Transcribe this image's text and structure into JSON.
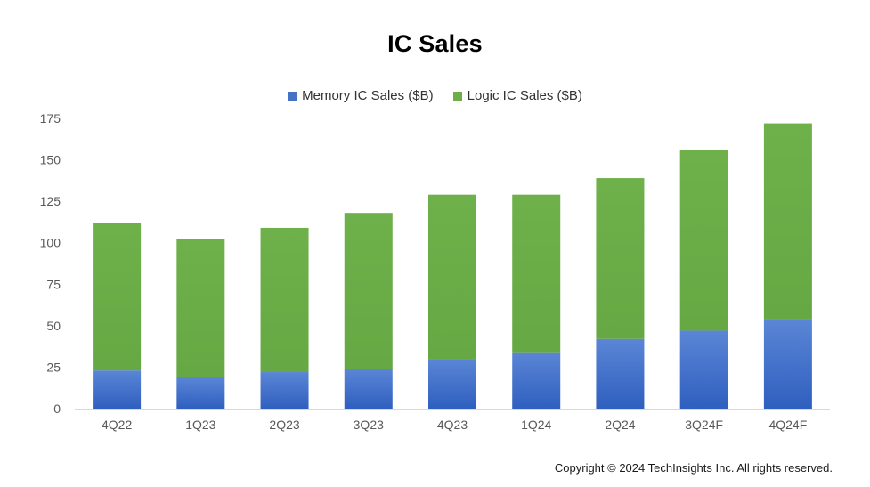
{
  "chart_data": {
    "type": "bar",
    "stacked": true,
    "title": "IC Sales",
    "xlabel": "",
    "ylabel": "",
    "categories": [
      "4Q22",
      "1Q23",
      "2Q23",
      "3Q23",
      "4Q23",
      "1Q24",
      "2Q24",
      "3Q24F",
      "4Q24F"
    ],
    "series": [
      {
        "name": "Memory IC Sales ($B)",
        "color": "#4472c4",
        "values": [
          23,
          19,
          22,
          24,
          30,
          34,
          42,
          47,
          54
        ]
      },
      {
        "name": "Logic IC Sales ($B)",
        "color": "#70ad47",
        "values": [
          89,
          83,
          87,
          94,
          99,
          95,
          97,
          109,
          118
        ]
      }
    ],
    "ylim": [
      0,
      175
    ],
    "yticks": [
      "0",
      "25",
      "50",
      "75",
      "100",
      "125",
      "150",
      "175"
    ],
    "grid": false,
    "legend_position": "top"
  },
  "footer": {
    "copyright": "Copyright © 2024 TechInsights Inc.  All rights reserved."
  }
}
